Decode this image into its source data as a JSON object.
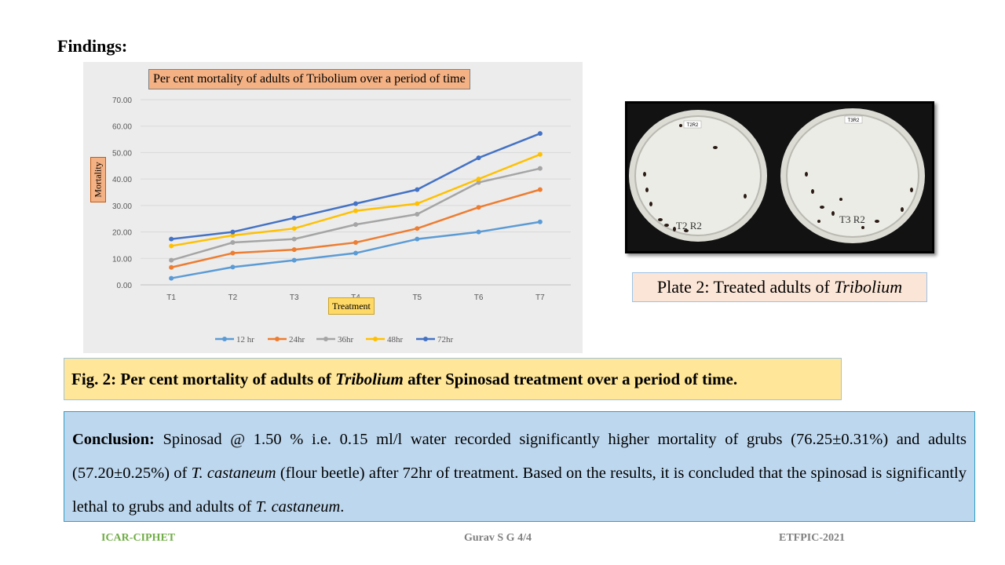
{
  "heading": "Findings:",
  "chart_data": {
    "type": "line",
    "title": "Per cent mortality of adults of Tribolium over a period of time",
    "xlabel": "Treatment",
    "ylabel": "Mortality",
    "categories": [
      "T1",
      "T2",
      "T3",
      "T4",
      "T5",
      "T6",
      "T7"
    ],
    "ylim": [
      0,
      70
    ],
    "yticks": [
      "0.00",
      "10.00",
      "20.00",
      "30.00",
      "40.00",
      "50.00",
      "60.00",
      "70.00"
    ],
    "grid": true,
    "legend_position": "bottom",
    "series": [
      {
        "name": "12 hr",
        "color": "#5b9bd5",
        "values": [
          2.5,
          6.7,
          9.3,
          12.0,
          17.3,
          20.0,
          23.8
        ]
      },
      {
        "name": "24hr",
        "color": "#ed7d31",
        "values": [
          6.6,
          12.0,
          13.3,
          16.0,
          21.3,
          29.3,
          36.0
        ]
      },
      {
        "name": "36hr",
        "color": "#a5a5a5",
        "values": [
          9.3,
          16.0,
          17.3,
          22.8,
          26.7,
          38.7,
          44.0
        ]
      },
      {
        "name": "48hr",
        "color": "#ffc000",
        "values": [
          14.7,
          18.7,
          21.3,
          28.0,
          30.7,
          40.0,
          49.3
        ]
      },
      {
        "name": "72hr",
        "color": "#4472c4",
        "values": [
          17.3,
          20.0,
          25.3,
          30.7,
          36.0,
          48.0,
          57.2
        ]
      }
    ]
  },
  "photo": {
    "alt_label": "Petri dishes with treated Tribolium adults",
    "dish_labels": [
      "T2R2",
      "T3R2"
    ]
  },
  "plate_caption": {
    "prefix": "Plate 2: Treated adults of ",
    "italic": "Tribolium"
  },
  "fig_caption": {
    "prefix": "Fig. 2: Per cent mortality of adults of ",
    "italic": "Tribolium",
    "suffix": " after Spinosad treatment over a period of time."
  },
  "conclusion": {
    "label": "Conclusion:",
    "text1": " Spinosad @ 1.50 % i.e. 0.15 ml/l water recorded significantly higher mortality of grubs (76.25±0.31%) and adults (57.20±0.25%) of ",
    "italic1": "T. castaneum",
    "text2": " (flour beetle) after 72hr of treatment. Based on the results, it is concluded that the spinosad is significantly lethal to grubs and adults of ",
    "italic2": "T. castaneum",
    "text3": "."
  },
  "footer": {
    "left": "ICAR-CIPHET",
    "center": "Gurav S G 4/4",
    "right": "ETFPIC-2021"
  }
}
